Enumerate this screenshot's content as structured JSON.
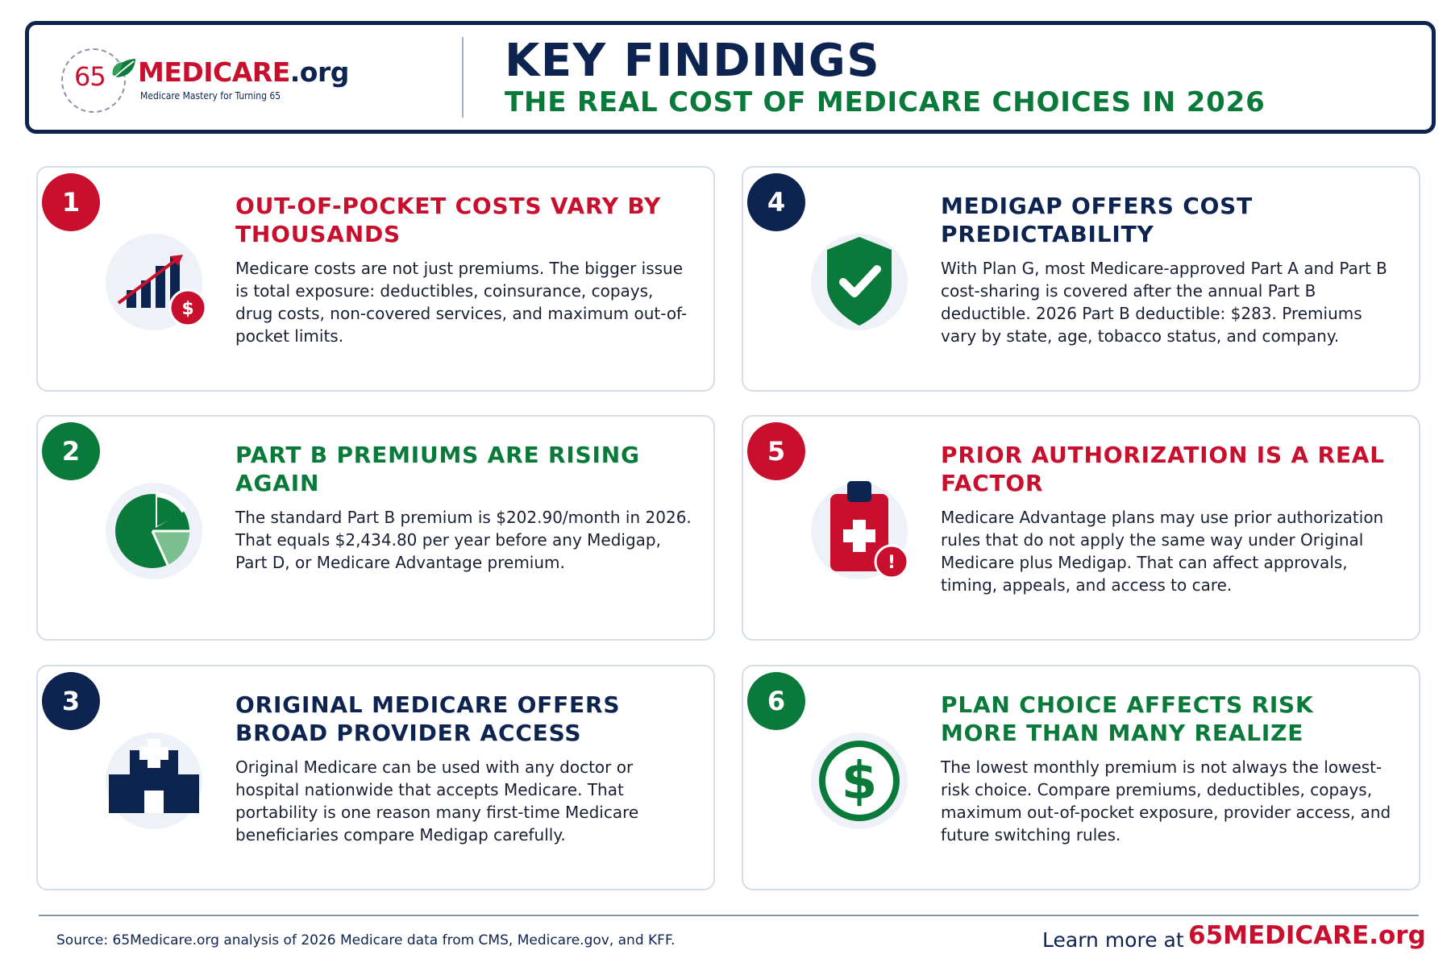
{
  "brand": {
    "logo_number": "65",
    "logo_name": "MEDICARE",
    "logo_suffix": ".org",
    "tagline": "Medicare Mastery for Turning 65"
  },
  "header": {
    "title": "KEY FINDINGS",
    "subtitle": "THE REAL COST OF MEDICARE CHOICES IN 2026"
  },
  "colors": {
    "navy": "#0d2451",
    "red": "#c8102e",
    "green": "#0a7a3b",
    "card_border": "#d4deea",
    "icon_bg": "#eef2f8"
  },
  "findings": [
    {
      "number": "1",
      "title": "OUT-OF-POCKET COSTS VARY BY THOUSANDS",
      "body": "Medicare costs are not just premiums. The bigger issue is total exposure: deductibles, coinsurance, copays, drug costs, non-covered services, and maximum out-of-pocket limits.",
      "icon": "rising-bar-chart-with-dollar-icon",
      "accent": "red"
    },
    {
      "number": "2",
      "title": "PART B PREMIUMS ARE RISING AGAIN",
      "body": "The standard Part B premium is $202.90/month in 2026. That equals $2,434.80 per year before any Medigap, Part D, or Medicare Advantage premium.",
      "icon": "pie-chart-icon",
      "accent": "green"
    },
    {
      "number": "3",
      "title": "ORIGINAL MEDICARE OFFERS BROAD PROVIDER ACCESS",
      "body": "Original Medicare can be used with any doctor or hospital nationwide that accepts Medicare. That portability is one reason many first-time Medicare beneficiaries compare Medigap carefully.",
      "icon": "hospital-building-icon",
      "accent": "navy"
    },
    {
      "number": "4",
      "title": "MEDIGAP OFFERS COST PREDICTABILITY",
      "body": "With Plan G, most Medicare-approved Part A and Part B cost-sharing is covered after the annual Part B deductible. 2026 Part B deductible: $283. Premiums vary by state, age, tobacco status, and company.",
      "icon": "shield-check-icon",
      "accent": "navy"
    },
    {
      "number": "5",
      "title": "PRIOR AUTHORIZATION IS A REAL FACTOR",
      "body": "Medicare Advantage plans may use prior authorization rules that do not apply the same way under Original Medicare plus Medigap. That can affect approvals, timing, appeals, and access to care.",
      "icon": "medical-clipboard-alert-icon",
      "accent": "red"
    },
    {
      "number": "6",
      "title": "PLAN CHOICE AFFECTS RISK MORE THAN MANY REALIZE",
      "body": "The lowest monthly premium is not always the lowest-risk choice. Compare premiums, deductibles, copays, maximum out-of-pocket exposure, provider access, and future switching rules.",
      "icon": "dollar-circle-icon",
      "accent": "green"
    }
  ],
  "footer": {
    "source": "Source: 65Medicare.org analysis of 2026 Medicare data from CMS, Medicare.gov, and KFF.",
    "learn_more": "Learn more at",
    "link": "65MEDICARE.org"
  }
}
